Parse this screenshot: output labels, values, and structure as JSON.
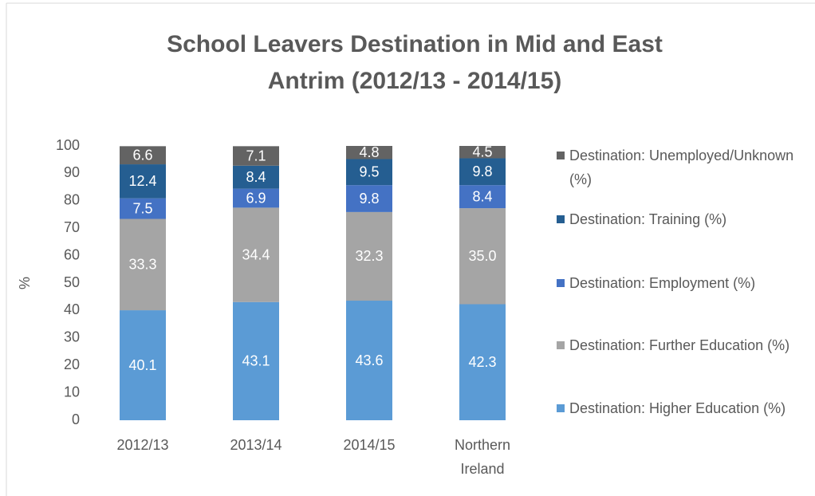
{
  "chart_data": {
    "type": "stacked_bar",
    "title": "School Leavers Destination in Mid and East Antrim (2012/13 - 2014/15)",
    "ylabel": "%",
    "categories": [
      "2012/13",
      "2013/14",
      "2014/15",
      "Northern Ireland"
    ],
    "series": [
      {
        "name": "Destination: Higher Education (%)",
        "color": "#5b9bd5",
        "values": [
          40.1,
          43.1,
          43.6,
          42.3
        ]
      },
      {
        "name": "Destination: Further Education (%)",
        "color": "#a5a5a5",
        "values": [
          33.3,
          34.4,
          32.3,
          35.0
        ],
        "value_labels": [
          "33.3",
          "34.4",
          "32.3",
          "35.0"
        ]
      },
      {
        "name": "Destination: Employment (%)",
        "color": "#4472c4",
        "values": [
          7.5,
          6.9,
          9.8,
          8.4
        ]
      },
      {
        "name": "Destination: Training (%)",
        "color": "#255e91",
        "values": [
          12.4,
          8.4,
          9.5,
          9.8
        ]
      },
      {
        "name": "Destination: Unemployed/Unknown (%)",
        "color": "#636363",
        "values": [
          6.6,
          7.1,
          4.8,
          4.5
        ]
      }
    ],
    "ylim": [
      0,
      100
    ],
    "yticks": [
      0,
      10,
      20,
      30,
      40,
      50,
      60,
      70,
      80,
      90,
      100
    ],
    "grid": false,
    "legend": "right"
  }
}
